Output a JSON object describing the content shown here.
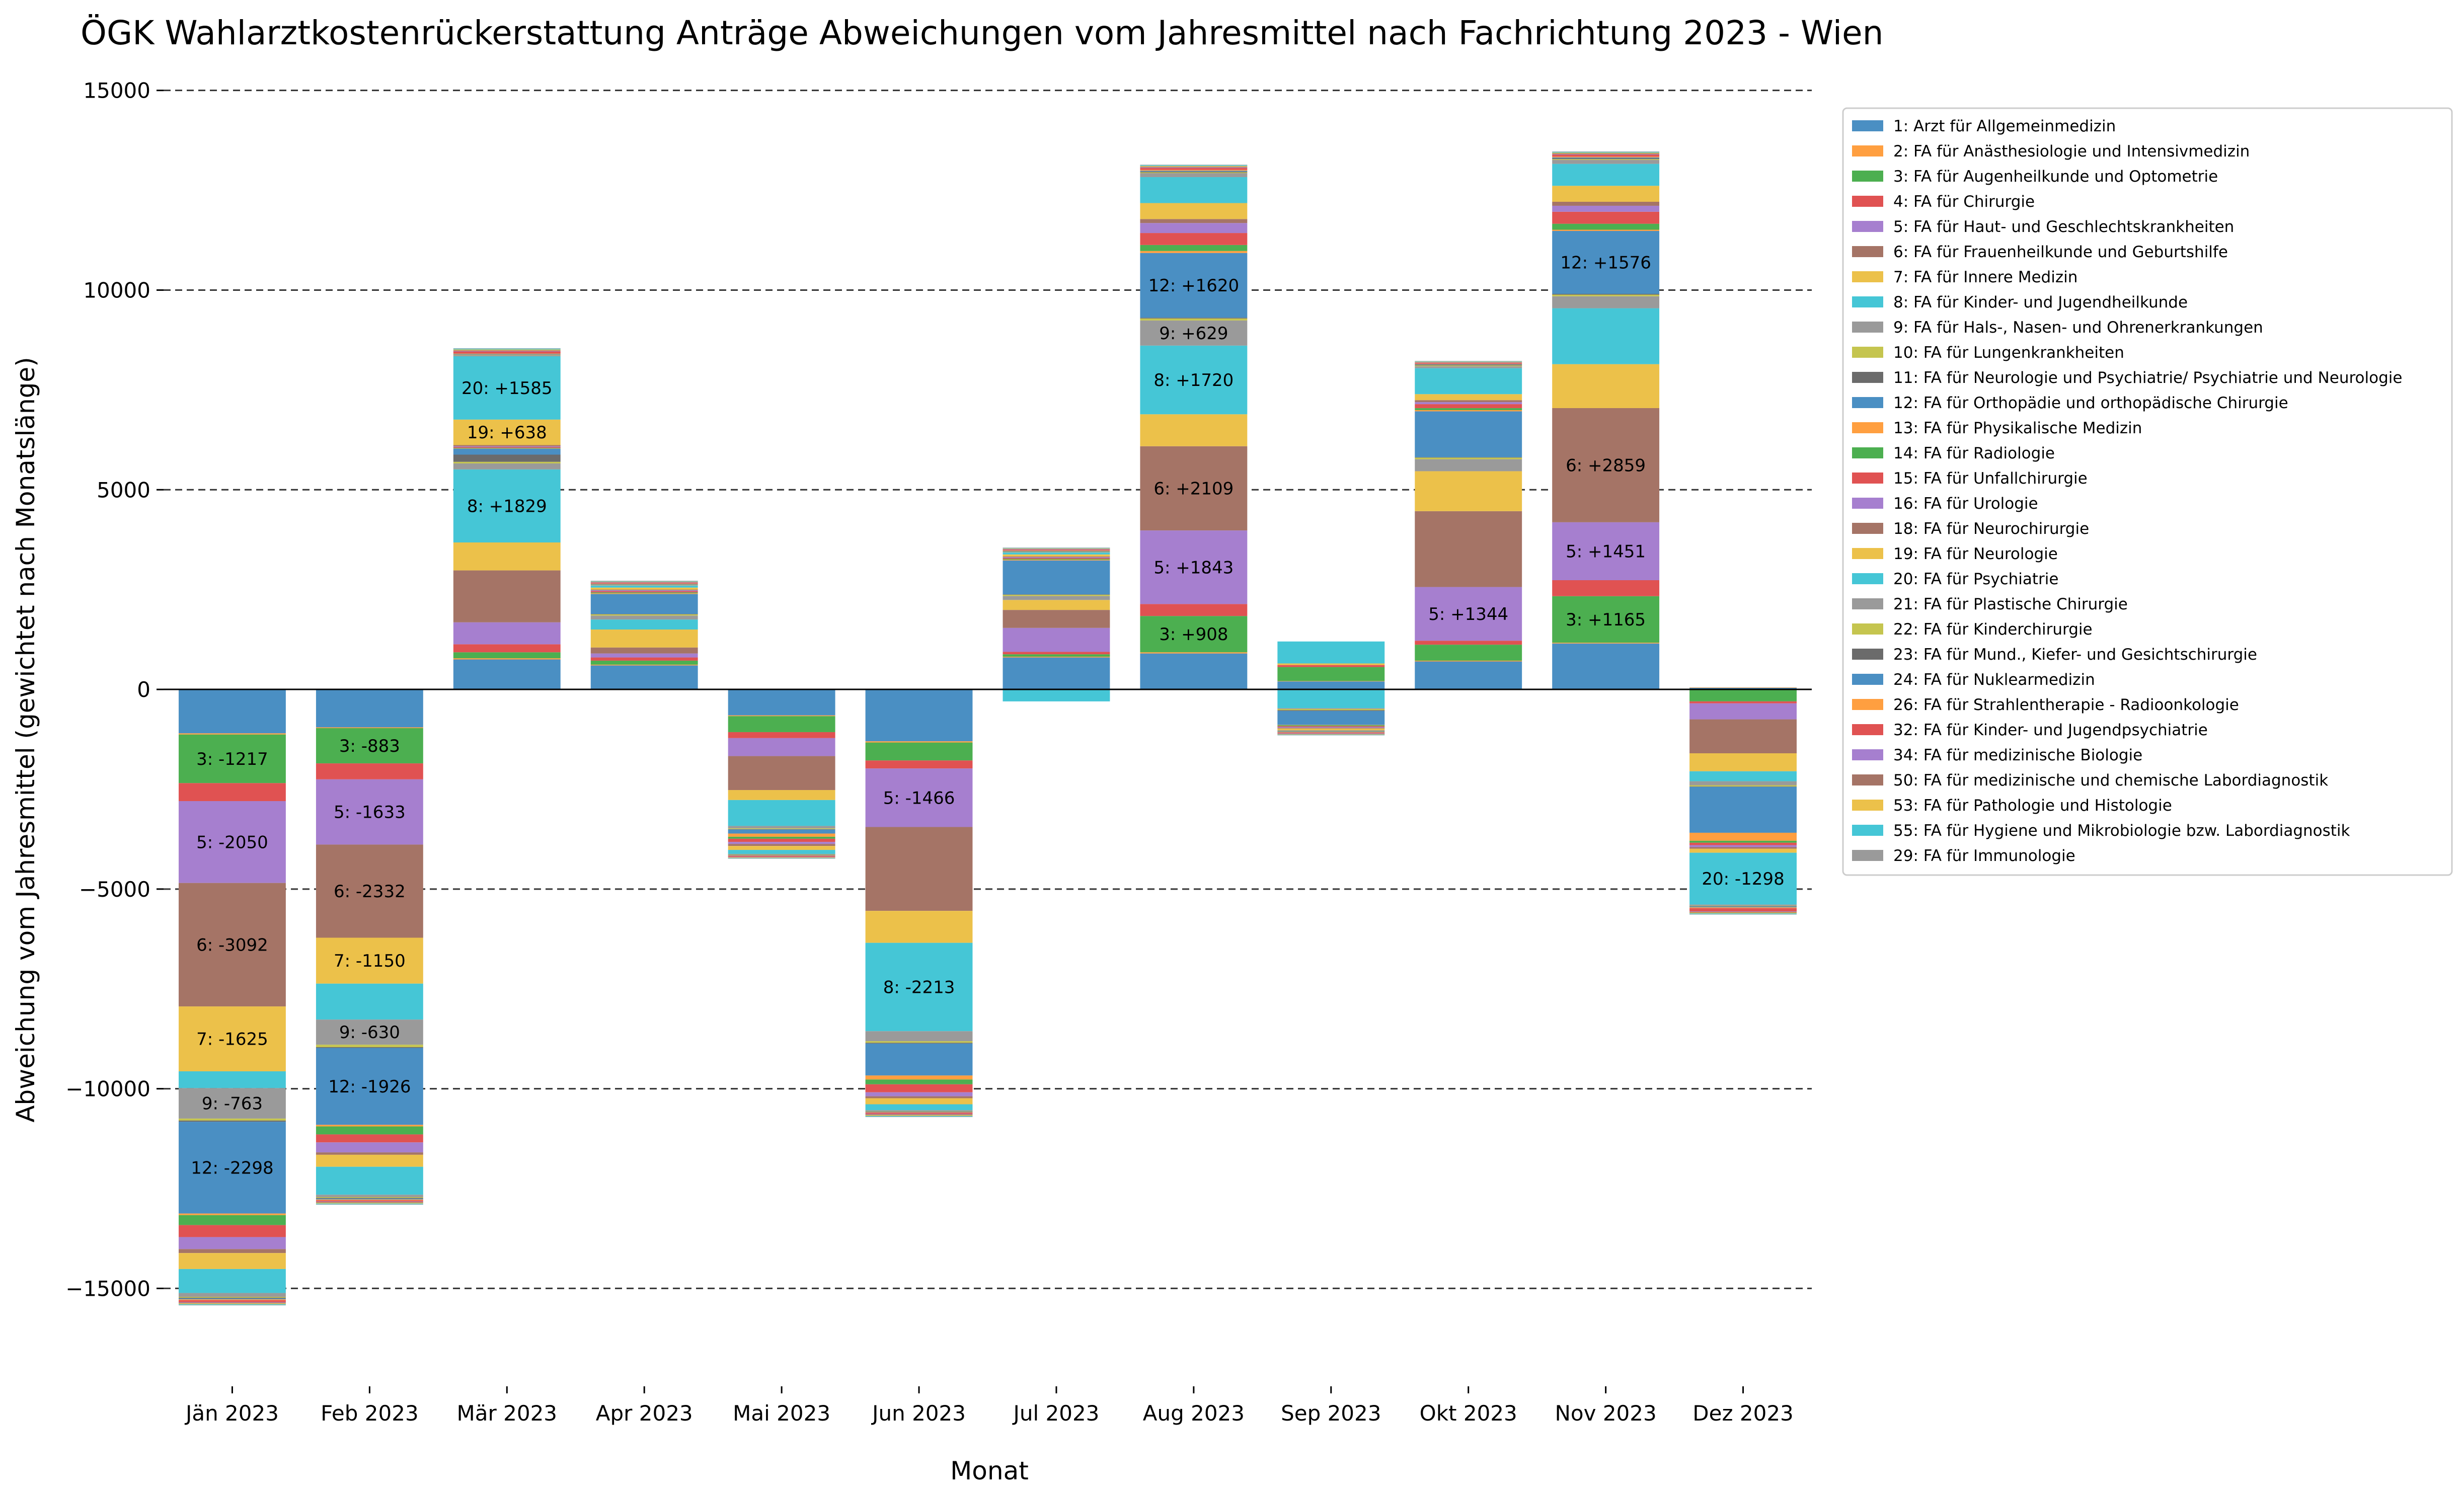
{
  "chart_data": {
    "type": "bar",
    "stacked": true,
    "title": "ÖGK Wahlarztkostenrückerstattung Anträge Abweichungen vom Jahresmittel nach Fachrichtung 2023 - Wien",
    "xlabel": "Monat",
    "ylabel": "Abweichung vom Jahresmittel (gewichtet nach Monatslänge)",
    "ylim": [
      -17200,
      15500
    ],
    "yticks": [
      -15000,
      -10000,
      -5000,
      0,
      5000,
      10000,
      15000
    ],
    "ytick_labels": [
      "−15000",
      "−10000",
      "−5000",
      "0",
      "5000",
      "10000",
      "15000"
    ],
    "grid": "horizontal dashed",
    "legend_position": "right",
    "categories": [
      "Jän 2023",
      "Feb 2023",
      "Mär 2023",
      "Apr 2023",
      "Mai 2023",
      "Jun 2023",
      "Jul 2023",
      "Aug 2023",
      "Sep 2023",
      "Okt 2023",
      "Nov 2023",
      "Dez 2023"
    ],
    "series": [
      {
        "name": "1: Arzt für Allgemeinmedizin",
        "color": "#4a8fc3",
        "values": [
          -1100,
          -950,
          750,
          600,
          -650,
          -1300,
          800,
          900,
          200,
          700,
          1150,
          40
        ]
      },
      {
        "name": "2: FA für Anästhesiologie und Intensivmedizin",
        "color": "#ff9f40",
        "values": [
          -30,
          -20,
          30,
          20,
          -20,
          -30,
          20,
          30,
          10,
          20,
          20,
          10
        ]
      },
      {
        "name": "3: FA für Augenheilkunde und Optometrie",
        "color": "#4caf50",
        "values": [
          -1217,
          -883,
          150,
          100,
          -400,
          -450,
          60,
          908,
          350,
          400,
          1165,
          -300
        ]
      },
      {
        "name": "4: FA für Chirurgie",
        "color": "#e05252",
        "values": [
          -450,
          -400,
          200,
          80,
          -150,
          -200,
          60,
          300,
          50,
          100,
          400,
          -50
        ]
      },
      {
        "name": "5: FA für Haut- und Geschlechtskrankheiten",
        "color": "#a67fcf",
        "values": [
          -2050,
          -1633,
          550,
          100,
          -450,
          -1466,
          600,
          1843,
          -10,
          1344,
          1451,
          -400
        ]
      },
      {
        "name": "6: FA für Frauenheilkunde und Geburtshilfe",
        "color": "#a57466",
        "values": [
          -3092,
          -2332,
          1300,
          150,
          -850,
          -2100,
          450,
          2109,
          -10,
          1900,
          2859,
          -850
        ]
      },
      {
        "name": "7: FA für Innere Medizin",
        "color": "#ecc14a",
        "values": [
          -1625,
          -1150,
          700,
          450,
          -250,
          -800,
          250,
          800,
          40,
          1000,
          1100,
          -450
        ]
      },
      {
        "name": "8: FA für Kinder- und Jugendheilkunde",
        "color": "#45c6d6",
        "values": [
          -420,
          -900,
          1829,
          250,
          -650,
          -2213,
          -300,
          1720,
          -450,
          -10,
          1400,
          -250
        ]
      },
      {
        "name": "9: FA für Hals-, Nasen- und Ohrenerkrankungen",
        "color": "#9a9a9a",
        "values": [
          -763,
          -630,
          150,
          100,
          -60,
          -250,
          100,
          629,
          -20,
          300,
          300,
          -100
        ]
      },
      {
        "name": "10: FA für Lungenkrankheiten",
        "color": "#c5c54f",
        "values": [
          -50,
          -60,
          40,
          30,
          -20,
          -40,
          30,
          50,
          -30,
          40,
          40,
          -30
        ]
      },
      {
        "name": "11: FA für Neurologie und Psychiatrie/ Psychiatrie und Neurologie",
        "color": "#6b6b6b",
        "values": [
          -30,
          -20,
          180,
          10,
          -10,
          -20,
          10,
          20,
          -20,
          10,
          20,
          -10
        ]
      },
      {
        "name": "12: FA für Orthopädie und orthopädische Chirurgie",
        "color": "#4a8fc3",
        "values": [
          -2298,
          -1926,
          150,
          500,
          -100,
          -800,
          850,
          1620,
          -350,
          1150,
          1576,
          -1150
        ]
      },
      {
        "name": "13: FA für Physikalische Medizin",
        "color": "#ff9f40",
        "values": [
          -40,
          -40,
          10,
          20,
          -80,
          -100,
          20,
          50,
          -10,
          30,
          30,
          -200
        ]
      },
      {
        "name": "14: FA für Radiologie",
        "color": "#4caf50",
        "values": [
          -250,
          -200,
          10,
          20,
          -50,
          -120,
          20,
          150,
          -20,
          50,
          150,
          -50
        ]
      },
      {
        "name": "15: FA für Unfallchirurgie",
        "color": "#e05252",
        "values": [
          -300,
          -200,
          20,
          30,
          -80,
          -200,
          20,
          300,
          -20,
          100,
          300,
          -60
        ]
      },
      {
        "name": "16: FA für Urologie",
        "color": "#a67fcf",
        "values": [
          -300,
          -250,
          20,
          20,
          -50,
          -100,
          20,
          250,
          -20,
          50,
          150,
          -50
        ]
      },
      {
        "name": "18: FA für Neurochirurgie",
        "color": "#a57466",
        "values": [
          -100,
          -60,
          30,
          20,
          -50,
          -50,
          20,
          100,
          -20,
          50,
          100,
          -40
        ]
      },
      {
        "name": "19: FA für Neurologie",
        "color": "#ecc14a",
        "values": [
          -400,
          -300,
          638,
          50,
          -100,
          -150,
          50,
          400,
          -40,
          150,
          400,
          -100
        ]
      },
      {
        "name": "20: FA für Psychiatrie",
        "color": "#45c6d6",
        "values": [
          -600,
          -700,
          1585,
          50,
          -100,
          -150,
          50,
          650,
          550,
          650,
          550,
          -1298
        ]
      },
      {
        "name": "21: FA für Plastische Chirurgie",
        "color": "#9a9a9a",
        "values": [
          -100,
          -60,
          30,
          10,
          -10,
          -20,
          10,
          100,
          -20,
          50,
          100,
          -30
        ]
      },
      {
        "name": "22: FA für Kinderchirurgie",
        "color": "#c5c54f",
        "values": [
          -20,
          -20,
          10,
          10,
          -10,
          -10,
          10,
          20,
          -10,
          20,
          20,
          -10
        ]
      },
      {
        "name": "23: FA für Mund., Kiefer- und Gesichtschirurgie",
        "color": "#6b6b6b",
        "values": [
          -20,
          -20,
          10,
          10,
          -10,
          -10,
          10,
          20,
          -10,
          20,
          20,
          -10
        ]
      },
      {
        "name": "24: FA für Nuklearmedizin",
        "color": "#4a8fc3",
        "values": [
          -20,
          -20,
          10,
          10,
          -10,
          -10,
          10,
          20,
          -10,
          10,
          20,
          -20
        ]
      },
      {
        "name": "26: FA für Strahlentherapie - Radioonkologie",
        "color": "#ff9f40",
        "values": [
          -20,
          -20,
          10,
          10,
          -10,
          -10,
          10,
          20,
          -10,
          10,
          20,
          -20
        ]
      },
      {
        "name": "32: FA für Kinder- und Jugendpsychiatrie",
        "color": "#e05252",
        "values": [
          -50,
          -30,
          50,
          20,
          -20,
          -30,
          20,
          50,
          -20,
          20,
          50,
          -80
        ]
      },
      {
        "name": "34: FA für medizinische Biologie",
        "color": "#a67fcf",
        "values": [
          -10,
          -10,
          10,
          10,
          -10,
          -10,
          10,
          10,
          -10,
          10,
          10,
          -10
        ]
      },
      {
        "name": "50: FA für medizinische und chemische Labordiagnostik",
        "color": "#a57466",
        "values": [
          -20,
          -20,
          20,
          10,
          -10,
          -20,
          10,
          20,
          -10,
          10,
          20,
          -20
        ]
      },
      {
        "name": "53: FA für Pathologie und Histologie",
        "color": "#ecc14a",
        "values": [
          -20,
          -20,
          20,
          10,
          -10,
          -20,
          10,
          20,
          -10,
          10,
          20,
          -20
        ]
      },
      {
        "name": "55: FA für Hygiene und Mikrobiologie bzw. Labordiagnostik",
        "color": "#45c6d6",
        "values": [
          -20,
          -20,
          20,
          10,
          -10,
          -20,
          10,
          20,
          -10,
          10,
          20,
          -20
        ]
      },
      {
        "name": "29: FA für Immunologie",
        "color": "#9a9a9a",
        "values": [
          -10,
          -10,
          10,
          10,
          -10,
          -10,
          10,
          10,
          -10,
          10,
          10,
          -10
        ]
      }
    ],
    "annotations": [
      {
        "category": "Jän 2023",
        "series": "3: FA für Augenheilkunde und Optometrie",
        "text": "3: -1217"
      },
      {
        "category": "Jän 2023",
        "series": "5: FA für Haut- und Geschlechtskrankheiten",
        "text": "5: -2050"
      },
      {
        "category": "Jän 2023",
        "series": "6: FA für Frauenheilkunde und Geburtshilfe",
        "text": "6: -3092"
      },
      {
        "category": "Jän 2023",
        "series": "7: FA für Innere Medizin",
        "text": "7: -1625"
      },
      {
        "category": "Jän 2023",
        "series": "9: FA für Hals-, Nasen- und Ohrenerkrankungen",
        "text": "9: -763"
      },
      {
        "category": "Jän 2023",
        "series": "12: FA für Orthopädie und orthopädische Chirurgie",
        "text": "12: -2298"
      },
      {
        "category": "Feb 2023",
        "series": "3: FA für Augenheilkunde und Optometrie",
        "text": "3: -883"
      },
      {
        "category": "Feb 2023",
        "series": "5: FA für Haut- und Geschlechtskrankheiten",
        "text": "5: -1633"
      },
      {
        "category": "Feb 2023",
        "series": "6: FA für Frauenheilkunde und Geburtshilfe",
        "text": "6: -2332"
      },
      {
        "category": "Feb 2023",
        "series": "7: FA für Innere Medizin",
        "text": "7: -1150"
      },
      {
        "category": "Feb 2023",
        "series": "9: FA für Hals-, Nasen- und Ohrenerkrankungen",
        "text": "9: -630"
      },
      {
        "category": "Feb 2023",
        "series": "12: FA für Orthopädie und orthopädische Chirurgie",
        "text": "12: -1926"
      },
      {
        "category": "Mär 2023",
        "series": "8: FA für Kinder- und Jugendheilkunde",
        "text": "8: +1829"
      },
      {
        "category": "Mär 2023",
        "series": "19: FA für Neurologie",
        "text": "19: +638"
      },
      {
        "category": "Mär 2023",
        "series": "20: FA für Psychiatrie",
        "text": "20: +1585"
      },
      {
        "category": "Jun 2023",
        "series": "5: FA für Haut- und Geschlechtskrankheiten",
        "text": "5: -1466"
      },
      {
        "category": "Jun 2023",
        "series": "8: FA für Kinder- und Jugendheilkunde",
        "text": "8: -2213"
      },
      {
        "category": "Aug 2023",
        "series": "3: FA für Augenheilkunde und Optometrie",
        "text": "3: +908"
      },
      {
        "category": "Aug 2023",
        "series": "5: FA für Haut- und Geschlechtskrankheiten",
        "text": "5: +1843"
      },
      {
        "category": "Aug 2023",
        "series": "6: FA für Frauenheilkunde und Geburtshilfe",
        "text": "6: +2109"
      },
      {
        "category": "Aug 2023",
        "series": "8: FA für Kinder- und Jugendheilkunde",
        "text": "8: +1720"
      },
      {
        "category": "Aug 2023",
        "series": "9: FA für Hals-, Nasen- und Ohrenerkrankungen",
        "text": "9: +629"
      },
      {
        "category": "Aug 2023",
        "series": "12: FA für Orthopädie und orthopädische Chirurgie",
        "text": "12: +1620"
      },
      {
        "category": "Okt 2023",
        "series": "5: FA für Haut- und Geschlechtskrankheiten",
        "text": "5: +1344"
      },
      {
        "category": "Nov 2023",
        "series": "3: FA für Augenheilkunde und Optometrie",
        "text": "3: +1165"
      },
      {
        "category": "Nov 2023",
        "series": "5: FA für Haut- und Geschlechtskrankheiten",
        "text": "5: +1451"
      },
      {
        "category": "Nov 2023",
        "series": "6: FA für Frauenheilkunde und Geburtshilfe",
        "text": "6: +2859"
      },
      {
        "category": "Nov 2023",
        "series": "12: FA für Orthopädie und orthopädische Chirurgie",
        "text": "12: +1576"
      },
      {
        "category": "Dez 2023",
        "series": "20: FA für Psychiatrie",
        "text": "20: -1298"
      }
    ]
  }
}
